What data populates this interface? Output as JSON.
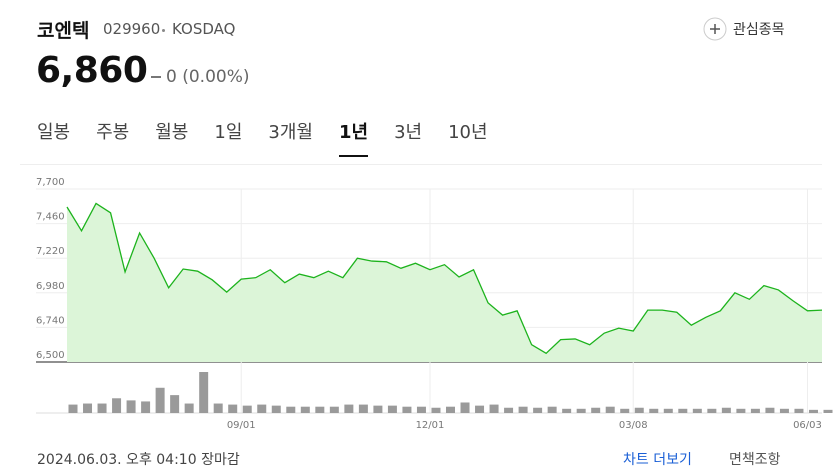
{
  "header": {
    "name": "코엔텍",
    "code": "029960",
    "market": "KOSDAQ",
    "watch_button": "관심종목"
  },
  "price": {
    "value": "6,860",
    "change": "0 (0.00%)"
  },
  "tabs": {
    "items": [
      "일봉",
      "주봉",
      "월봉",
      "1일",
      "3개월",
      "1년",
      "3년",
      "10년"
    ],
    "active": "1년"
  },
  "chart_data": [
    {
      "type": "area",
      "color": "#1db31d",
      "fill": "#dcf5d8",
      "categories": [
        null,
        null,
        null,
        null,
        null,
        null,
        null,
        null,
        null,
        null,
        null,
        null,
        "09/01",
        null,
        null,
        null,
        null,
        null,
        null,
        null,
        null,
        null,
        null,
        null,
        null,
        "12/01",
        null,
        null,
        null,
        null,
        null,
        null,
        null,
        null,
        null,
        null,
        null,
        null,
        null,
        "03/08",
        null,
        null,
        null,
        null,
        null,
        null,
        null,
        null,
        null,
        null,
        null,
        "06/03",
        null
      ],
      "values": [
        7575,
        7410,
        7600,
        7535,
        7125,
        7395,
        7220,
        7015,
        7145,
        7130,
        7070,
        6985,
        7075,
        7085,
        7140,
        7050,
        7110,
        7085,
        7130,
        7085,
        7220,
        7200,
        7195,
        7150,
        7185,
        7140,
        7175,
        7090,
        7140,
        6910,
        6825,
        6855,
        6620,
        6560,
        6655,
        6660,
        6620,
        6700,
        6735,
        6715,
        6860,
        6860,
        6845,
        6755,
        6810,
        6855,
        6980,
        6935,
        7030,
        7000,
        6925,
        6855,
        6860
      ],
      "ylim": [
        6500,
        7700
      ],
      "yticks": [
        {
          "value": 6500,
          "label": "6,500"
        },
        {
          "value": 6740,
          "label": "6,740"
        },
        {
          "value": 6980,
          "label": "6,980"
        },
        {
          "value": 7220,
          "label": "7,220"
        },
        {
          "value": 7460,
          "label": "7,460"
        },
        {
          "value": 7700,
          "label": "7,700"
        }
      ],
      "grid": true
    },
    {
      "type": "bar",
      "color": "#9a9a9a",
      "values": [
        8,
        9,
        9,
        14,
        12,
        11,
        24,
        17,
        9,
        39,
        9,
        8,
        7,
        8,
        7,
        6,
        6,
        6,
        6,
        8,
        8,
        7,
        7,
        6,
        6,
        5,
        6,
        10,
        7,
        8,
        5,
        6,
        5,
        6,
        4,
        4,
        5,
        6,
        4,
        5,
        4,
        4,
        4,
        4,
        4,
        5,
        4,
        4,
        5,
        4,
        4,
        3,
        3
      ]
    }
  ],
  "footer": {
    "timestamp": "2024.06.03. 오후 04:10 장마감",
    "more": "차트 더보기",
    "disclaimer": "면책조항"
  }
}
